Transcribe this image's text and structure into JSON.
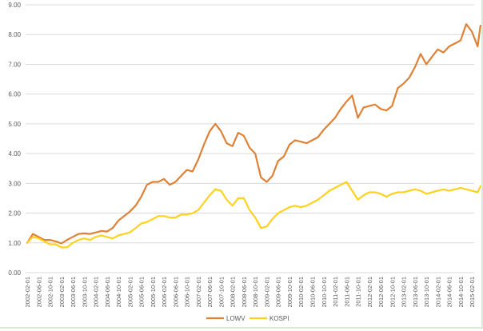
{
  "chart_data": {
    "type": "line",
    "title": "",
    "xlabel": "",
    "ylabel": "",
    "ylim": [
      0,
      9
    ],
    "y_ticks": [
      "0.00",
      "1.00",
      "2.00",
      "3.00",
      "4.00",
      "5.00",
      "6.00",
      "7.00",
      "8.00",
      "9.00"
    ],
    "x_tick_labels": [
      "2002-02-01",
      "2002-06-01",
      "2002-10-01",
      "2003-02-01",
      "2003-06-01",
      "2003-10-01",
      "2004-02-01",
      "2004-06-01",
      "2004-10-01",
      "2005-02-01",
      "2005-06-01",
      "2005-10-01",
      "2006-02-01",
      "2006-06-01",
      "2006-10-01",
      "2007-02-01",
      "2007-06-01",
      "2007-10-01",
      "2008-02-01",
      "2008-06-01",
      "2008-10-01",
      "2009-02-01",
      "2009-06-01",
      "2009-10-01",
      "2010-02-01",
      "2010-06-01",
      "2010-10-01",
      "2011-02-01",
      "2011-06-01",
      "2011-10-01",
      "2012-02-01",
      "2012-06-01",
      "2012-10-01",
      "2013-02-01",
      "2013-06-01",
      "2013-10-01",
      "2014-02-01",
      "2014-06-01",
      "2014-10-01",
      "2015-02-01"
    ],
    "x": [
      "2002-02",
      "2002-04",
      "2002-06",
      "2002-08",
      "2002-10",
      "2002-12",
      "2003-02",
      "2003-04",
      "2003-06",
      "2003-08",
      "2003-10",
      "2003-12",
      "2004-02",
      "2004-04",
      "2004-06",
      "2004-08",
      "2004-10",
      "2004-12",
      "2005-02",
      "2005-04",
      "2005-06",
      "2005-08",
      "2005-10",
      "2005-12",
      "2006-02",
      "2006-04",
      "2006-06",
      "2006-08",
      "2006-10",
      "2006-12",
      "2007-02",
      "2007-04",
      "2007-06",
      "2007-08",
      "2007-10",
      "2007-12",
      "2008-02",
      "2008-04",
      "2008-06",
      "2008-08",
      "2008-10",
      "2008-12",
      "2009-02",
      "2009-04",
      "2009-06",
      "2009-08",
      "2009-10",
      "2009-12",
      "2010-02",
      "2010-04",
      "2010-06",
      "2010-08",
      "2010-10",
      "2010-12",
      "2011-02",
      "2011-04",
      "2011-06",
      "2011-08",
      "2011-10",
      "2011-12",
      "2012-02",
      "2012-04",
      "2012-06",
      "2012-08",
      "2012-10",
      "2012-12",
      "2013-02",
      "2013-04",
      "2013-06",
      "2013-08",
      "2013-10",
      "2013-12",
      "2014-02",
      "2014-04",
      "2014-06",
      "2014-08",
      "2014-10",
      "2014-12",
      "2015-02",
      "2015-04",
      "2015-05"
    ],
    "series": [
      {
        "name": "LOWV",
        "color": "#dd8236",
        "values": [
          1.0,
          1.3,
          1.2,
          1.1,
          1.1,
          1.05,
          0.98,
          1.1,
          1.2,
          1.3,
          1.32,
          1.3,
          1.35,
          1.4,
          1.38,
          1.5,
          1.75,
          1.9,
          2.05,
          2.25,
          2.55,
          2.95,
          3.05,
          3.05,
          3.15,
          2.95,
          3.05,
          3.25,
          3.45,
          3.4,
          3.8,
          4.3,
          4.75,
          5.0,
          4.75,
          4.35,
          4.25,
          4.7,
          4.6,
          4.2,
          4.0,
          3.2,
          3.05,
          3.25,
          3.75,
          3.9,
          4.3,
          4.45,
          4.4,
          4.35,
          4.45,
          4.55,
          4.8,
          5.0,
          5.2,
          5.5,
          5.75,
          5.95,
          5.2,
          5.55,
          5.6,
          5.65,
          5.5,
          5.45,
          5.6,
          6.2,
          6.35,
          6.55,
          6.9,
          7.35,
          7.0,
          7.25,
          7.5,
          7.4,
          7.6,
          7.7,
          7.8,
          8.35,
          8.1,
          7.6,
          8.3
        ]
      },
      {
        "name": "KOSPI",
        "color": "#ffd21f",
        "values": [
          1.0,
          1.2,
          1.15,
          1.05,
          0.95,
          0.95,
          0.85,
          0.85,
          1.0,
          1.1,
          1.15,
          1.1,
          1.2,
          1.25,
          1.2,
          1.15,
          1.25,
          1.3,
          1.35,
          1.5,
          1.65,
          1.7,
          1.8,
          1.9,
          1.9,
          1.85,
          1.85,
          1.95,
          1.95,
          2.0,
          2.1,
          2.35,
          2.6,
          2.8,
          2.75,
          2.45,
          2.25,
          2.5,
          2.5,
          2.1,
          1.85,
          1.5,
          1.55,
          1.8,
          2.0,
          2.1,
          2.2,
          2.25,
          2.2,
          2.25,
          2.35,
          2.45,
          2.6,
          2.75,
          2.85,
          2.95,
          3.05,
          2.75,
          2.45,
          2.6,
          2.7,
          2.7,
          2.65,
          2.55,
          2.65,
          2.7,
          2.7,
          2.75,
          2.8,
          2.75,
          2.65,
          2.7,
          2.75,
          2.8,
          2.75,
          2.8,
          2.85,
          2.8,
          2.75,
          2.7,
          2.9
        ]
      }
    ],
    "legend_position": "bottom",
    "grid": "horizontal"
  }
}
